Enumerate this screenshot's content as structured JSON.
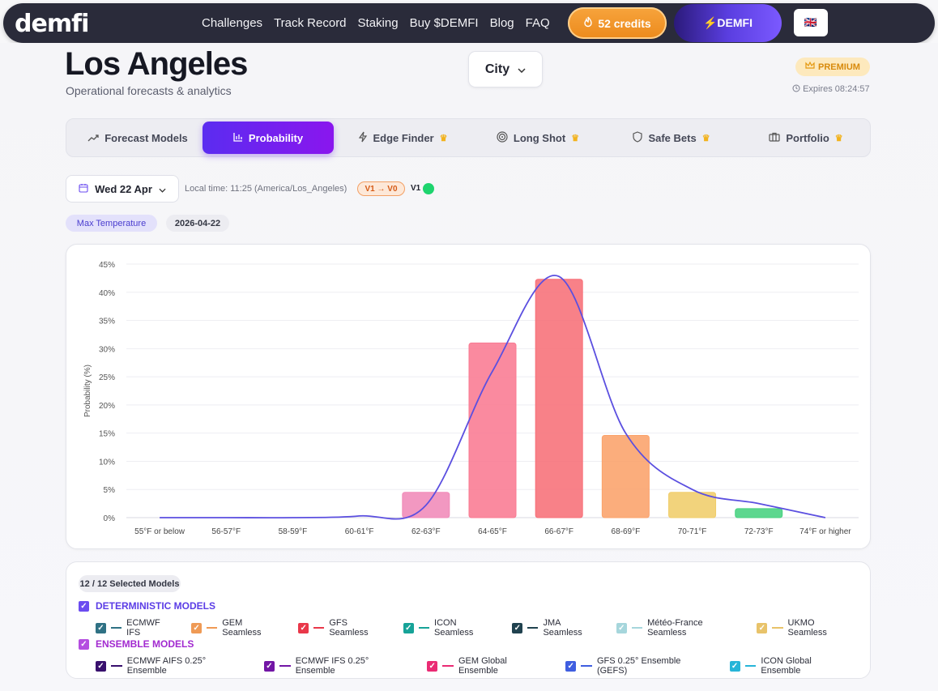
{
  "brand": "demfi",
  "nav": [
    "Challenges",
    "Track Record",
    "Staking",
    "Buy $DEMFI",
    "Blog",
    "FAQ"
  ],
  "credits_label": "52 credits",
  "demfi_button": "⚡DEMFI",
  "flag": "🇬🇧",
  "page": {
    "title": "Los Angeles",
    "subtitle": "Operational forecasts & analytics",
    "city_select": "City",
    "premium": "PREMIUM",
    "expires": "Expires 08:24:57"
  },
  "tabs": [
    {
      "label": "Forecast Models",
      "icon": "trend-icon",
      "premium": false,
      "active": false
    },
    {
      "label": "Probability",
      "icon": "bar-chart-icon",
      "premium": false,
      "active": true
    },
    {
      "label": "Edge Finder",
      "icon": "lightning-icon",
      "premium": true,
      "active": false
    },
    {
      "label": "Long Shot",
      "icon": "target-icon",
      "premium": true,
      "active": false
    },
    {
      "label": "Safe Bets",
      "icon": "shield-icon",
      "premium": true,
      "active": false
    },
    {
      "label": "Portfolio",
      "icon": "briefcase-icon",
      "premium": true,
      "active": false
    }
  ],
  "date_select": "Wed 22 Apr",
  "local_time": "Local time: 11:25 (America/Los_Angeles)",
  "version_badge": "V1 → V0",
  "version_label": "V1",
  "chips": {
    "variable": "Max Temperature",
    "date": "2026-04-22"
  },
  "chart_data": {
    "type": "bar",
    "ylabel": "Probability (%)",
    "xlabel": "",
    "ylim": [
      0,
      45
    ],
    "yticks": [
      "0%",
      "5%",
      "10%",
      "15%",
      "20%",
      "25%",
      "30%",
      "35%",
      "40%",
      "45%"
    ],
    "grid": true,
    "categories": [
      "55°F or below",
      "56-57°F",
      "58-59°F",
      "60-61°F",
      "62-63°F",
      "64-65°F",
      "66-67°F",
      "68-69°F",
      "70-71°F",
      "72-73°F",
      "74°F or higher"
    ],
    "values": [
      0,
      0,
      0,
      0,
      4.5,
      31,
      42.3,
      14.6,
      4.5,
      1.6,
      0
    ],
    "bar_colors": [
      "#f08ab8",
      "#f08ab8",
      "#f08ab8",
      "#f08ab8",
      "#f08ab8",
      "#f97a92",
      "#f76f77",
      "#fba26a",
      "#f0cd6a",
      "#47d17f",
      "#2bbfa0"
    ],
    "curve": {
      "color": "#5b4fe0",
      "values": [
        0,
        0,
        0,
        0.3,
        2.2,
        26,
        42.8,
        15,
        5,
        2.5,
        0
      ]
    }
  },
  "models": {
    "count_label": "12 / 12 Selected Models",
    "deterministic": {
      "title": "DETERMINISTIC MODELS",
      "items": [
        {
          "name": "ECMWF IFS",
          "color": "#2f7184"
        },
        {
          "name": "GEM Seamless",
          "color": "#ef9a55"
        },
        {
          "name": "GFS Seamless",
          "color": "#e9384a"
        },
        {
          "name": "ICON Seamless",
          "color": "#17a398"
        },
        {
          "name": "JMA Seamless",
          "color": "#20424f"
        },
        {
          "name": "Météo-France Seamless",
          "color": "#a6d6dc"
        },
        {
          "name": "UKMO Seamless",
          "color": "#e8c36a"
        }
      ]
    },
    "ensemble": {
      "title": "ENSEMBLE MODELS",
      "items": [
        {
          "name": "ECMWF AIFS 0.25° Ensemble",
          "color": "#38106d"
        },
        {
          "name": "ECMWF IFS 0.25° Ensemble",
          "color": "#7216a5"
        },
        {
          "name": "GEM Global Ensemble",
          "color": "#ea2b74"
        },
        {
          "name": "GFS 0.25° Ensemble (GEFS)",
          "color": "#3f5ee0"
        },
        {
          "name": "ICON Global Ensemble",
          "color": "#27b5d8"
        }
      ]
    }
  }
}
